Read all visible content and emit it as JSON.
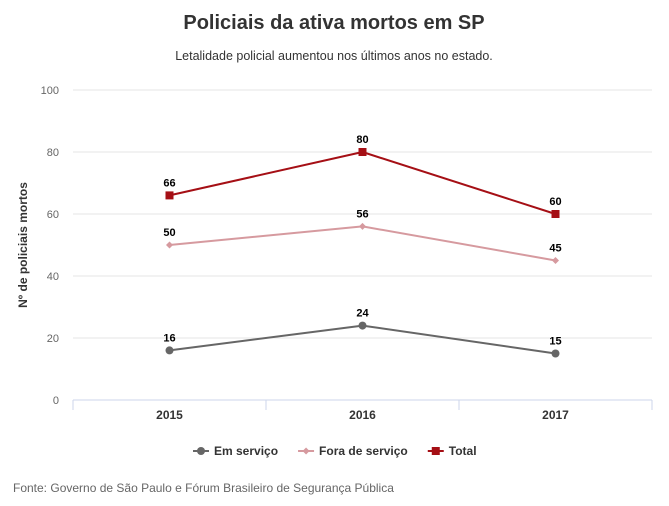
{
  "chart_data": {
    "type": "line",
    "title": "Policiais da ativa mortos em SP",
    "subtitle": "Letalidade policial aumentou nos últimos anos no estado.",
    "ylabel": "Nº de policiais mortos",
    "xlabel": "",
    "categories": [
      "2015",
      "2016",
      "2017"
    ],
    "ylim": [
      0,
      100
    ],
    "yticks": [
      0,
      20,
      40,
      60,
      80,
      100
    ],
    "grid": true,
    "legend_position": "bottom-center",
    "series": [
      {
        "name": "Em serviço",
        "values": [
          16,
          24,
          15
        ],
        "color": "#666666",
        "marker": "circle"
      },
      {
        "name": "Fora de serviço",
        "values": [
          50,
          56,
          45
        ],
        "color": "#d69a9f",
        "marker": "diamond"
      },
      {
        "name": "Total",
        "values": [
          66,
          80,
          60
        ],
        "color": "#a50f15",
        "marker": "square"
      }
    ],
    "source": "Fonte: Governo de São Paulo e Fórum Brasileiro de Segurança Pública"
  }
}
